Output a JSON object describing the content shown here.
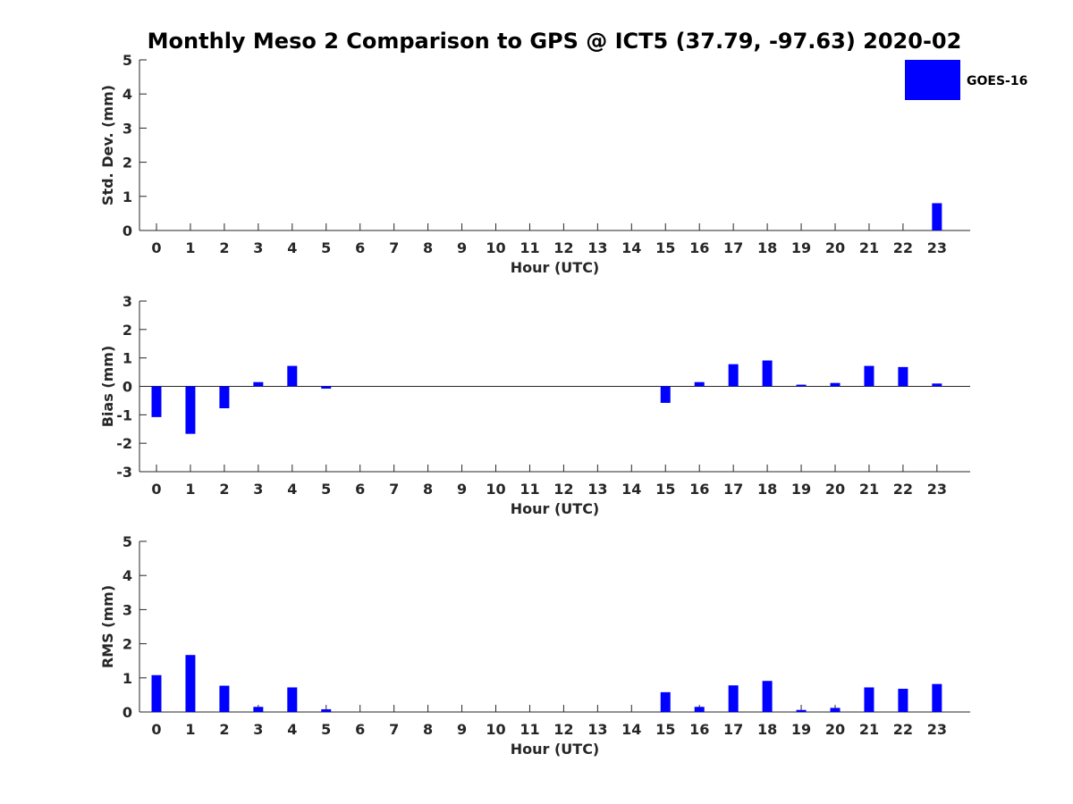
{
  "chart_data": {
    "title": "Monthly Meso 2 Comparison to GPS @ ICT5 (37.79, -97.63) 2020-02",
    "type": "bar",
    "legend": {
      "label": "GOES-16",
      "color": "#0000ff",
      "placement": "top-right"
    },
    "panels": [
      {
        "type": "bar",
        "xlabel": "Hour (UTC)",
        "ylabel": "Std. Dev. (mm)",
        "ylim": [
          0,
          5
        ],
        "yticks": [
          0,
          1,
          2,
          3,
          4,
          5
        ],
        "grid": false,
        "categories": [
          "0",
          "1",
          "2",
          "3",
          "4",
          "5",
          "6",
          "7",
          "8",
          "9",
          "10",
          "11",
          "12",
          "13",
          "14",
          "15",
          "16",
          "17",
          "18",
          "19",
          "20",
          "21",
          "22",
          "23"
        ],
        "series": [
          {
            "name": "GOES-16",
            "values": [
              0,
              0,
              0,
              0,
              0,
              0,
              0,
              0,
              0,
              0,
              0,
              0,
              0,
              0,
              0,
              0,
              0,
              0,
              0,
              0,
              0,
              0,
              0,
              0.8
            ]
          }
        ]
      },
      {
        "type": "bar",
        "xlabel": "Hour (UTC)",
        "ylabel": "Bias (mm)",
        "ylim": [
          -3,
          3
        ],
        "yticks": [
          -3,
          -2,
          -1,
          0,
          1,
          2,
          3
        ],
        "grid": false,
        "categories": [
          "0",
          "1",
          "2",
          "3",
          "4",
          "5",
          "6",
          "7",
          "8",
          "9",
          "10",
          "11",
          "12",
          "13",
          "14",
          "15",
          "16",
          "17",
          "18",
          "19",
          "20",
          "21",
          "22",
          "23"
        ],
        "series": [
          {
            "name": "GOES-16",
            "values": [
              -1.08,
              -1.67,
              -0.77,
              0.15,
              0.72,
              -0.08,
              0,
              0,
              0,
              0,
              0,
              0,
              0,
              0,
              0,
              -0.58,
              0.15,
              0.78,
              0.91,
              0.06,
              0.12,
              0.72,
              0.68,
              0.1
            ]
          }
        ]
      },
      {
        "type": "bar",
        "xlabel": "Hour (UTC)",
        "ylabel": "RMS (mm)",
        "ylim": [
          0,
          5
        ],
        "yticks": [
          0,
          1,
          2,
          3,
          4,
          5
        ],
        "grid": false,
        "categories": [
          "0",
          "1",
          "2",
          "3",
          "4",
          "5",
          "6",
          "7",
          "8",
          "9",
          "10",
          "11",
          "12",
          "13",
          "14",
          "15",
          "16",
          "17",
          "18",
          "19",
          "20",
          "21",
          "22",
          "23"
        ],
        "series": [
          {
            "name": "GOES-16",
            "values": [
              1.08,
              1.67,
              0.77,
              0.15,
              0.72,
              0.08,
              0,
              0,
              0,
              0,
              0,
              0,
              0,
              0,
              0,
              0.58,
              0.15,
              0.78,
              0.91,
              0.06,
              0.12,
              0.72,
              0.68,
              0.82
            ]
          }
        ]
      }
    ]
  }
}
